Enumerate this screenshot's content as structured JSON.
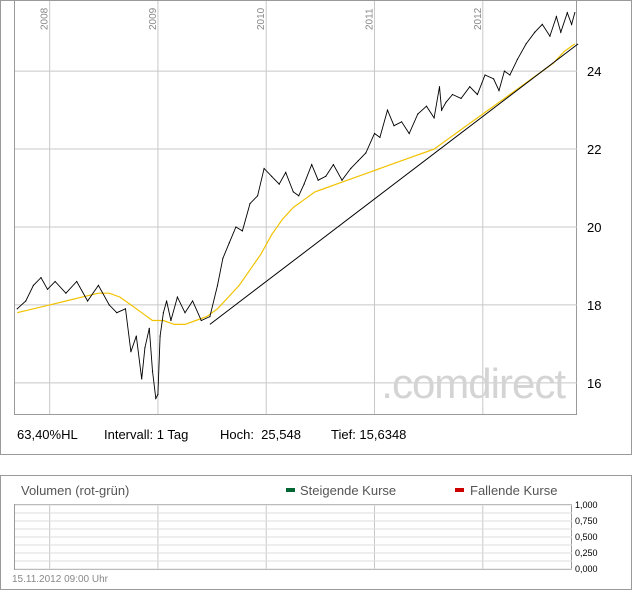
{
  "chart_data": [
    {
      "type": "line",
      "title": "",
      "x_years": [
        "2008",
        "2009",
        "2010",
        "2011",
        "2012"
      ],
      "y_ticks": [
        16,
        18,
        20,
        22,
        24
      ],
      "ylim": [
        15.2,
        25.8
      ],
      "price_series": {
        "name": "",
        "x": [
          2007.7,
          2007.78,
          2007.85,
          2007.92,
          2007.98,
          2008.05,
          2008.15,
          2008.25,
          2008.35,
          2008.45,
          2008.55,
          2008.62,
          2008.7,
          2008.75,
          2008.8,
          2008.85,
          2008.88,
          2008.92,
          2008.95,
          2008.98,
          2009.0,
          2009.02,
          2009.05,
          2009.08,
          2009.12,
          2009.18,
          2009.25,
          2009.32,
          2009.4,
          2009.48,
          2009.55,
          2009.6,
          2009.66,
          2009.72,
          2009.78,
          2009.85,
          2009.92,
          2009.98,
          2010.05,
          2010.12,
          2010.18,
          2010.25,
          2010.3,
          2010.35,
          2010.42,
          2010.48,
          2010.55,
          2010.62,
          2010.7,
          2010.78,
          2010.85,
          2010.92,
          2011.0,
          2011.05,
          2011.12,
          2011.18,
          2011.25,
          2011.32,
          2011.4,
          2011.48,
          2011.55,
          2011.6,
          2011.62,
          2011.66,
          2011.72,
          2011.8,
          2011.88,
          2011.95,
          2012.02,
          2012.1,
          2012.15,
          2012.2,
          2012.25,
          2012.32,
          2012.4,
          2012.48,
          2012.55,
          2012.62,
          2012.68,
          2012.72,
          2012.78,
          2012.82,
          2012.85
        ],
        "y": [
          17.9,
          18.1,
          18.5,
          18.7,
          18.4,
          18.6,
          18.3,
          18.6,
          18.1,
          18.5,
          18.0,
          17.8,
          17.9,
          16.8,
          17.2,
          16.1,
          16.9,
          17.4,
          16.3,
          15.6,
          15.7,
          17.2,
          17.8,
          18.1,
          17.6,
          18.2,
          17.8,
          18.1,
          17.6,
          17.7,
          18.5,
          19.2,
          19.6,
          20.0,
          19.9,
          20.6,
          20.8,
          21.5,
          21.3,
          21.1,
          21.4,
          20.9,
          20.8,
          21.1,
          21.6,
          21.2,
          21.3,
          21.6,
          21.2,
          21.5,
          21.7,
          21.9,
          22.4,
          22.3,
          23.0,
          22.6,
          22.7,
          22.4,
          22.9,
          23.1,
          22.8,
          23.6,
          23.0,
          23.2,
          23.4,
          23.3,
          23.6,
          23.4,
          23.9,
          23.8,
          23.5,
          24.0,
          23.9,
          24.3,
          24.7,
          25.0,
          25.2,
          24.9,
          25.4,
          25.0,
          25.5,
          25.2,
          25.5
        ]
      },
      "moving_average": {
        "name": "",
        "color": "#f2c200",
        "x": [
          2007.7,
          2007.85,
          2008.0,
          2008.15,
          2008.3,
          2008.45,
          2008.55,
          2008.65,
          2008.75,
          2008.85,
          2008.95,
          2009.05,
          2009.15,
          2009.25,
          2009.35,
          2009.45,
          2009.55,
          2009.65,
          2009.75,
          2009.85,
          2009.95,
          2010.05,
          2010.15,
          2010.25,
          2010.35,
          2010.45,
          2010.55,
          2010.65,
          2010.75,
          2010.85,
          2010.95,
          2011.05,
          2011.15,
          2011.25,
          2011.35,
          2011.45,
          2011.55,
          2011.65,
          2011.75,
          2011.85,
          2011.95,
          2012.05,
          2012.15,
          2012.25,
          2012.35,
          2012.45,
          2012.55,
          2012.65,
          2012.75,
          2012.85
        ],
        "y": [
          17.8,
          17.9,
          18.0,
          18.1,
          18.2,
          18.3,
          18.3,
          18.2,
          18.0,
          17.8,
          17.6,
          17.6,
          17.5,
          17.5,
          17.6,
          17.7,
          17.9,
          18.2,
          18.5,
          18.9,
          19.3,
          19.8,
          20.2,
          20.5,
          20.7,
          20.9,
          21.0,
          21.1,
          21.2,
          21.3,
          21.4,
          21.5,
          21.6,
          21.7,
          21.8,
          21.9,
          22.0,
          22.2,
          22.4,
          22.6,
          22.8,
          23.0,
          23.2,
          23.4,
          23.6,
          23.8,
          24.0,
          24.2,
          24.5,
          24.7
        ]
      },
      "trendline": {
        "x": [
          2009.48,
          2012.88
        ],
        "y": [
          17.5,
          24.7
        ]
      },
      "grid": true,
      "y_axis_position": "right"
    },
    {
      "type": "bar",
      "title": "Volumen (rot-grün)",
      "y_ticks": [
        "1,000",
        "0,750",
        "0,500",
        "0,250",
        "0,000"
      ],
      "ylim": [
        0,
        1
      ],
      "grid": true,
      "y_axis_position": "right"
    }
  ],
  "stats": {
    "hl": "63,40%HL",
    "interval": "Intervall: 1 Tag",
    "high": "Hoch:  25,548",
    "low": "Tief: 15,6348"
  },
  "watermark": ".comdirect",
  "volume_panel": {
    "rising": "Steigende Kurse",
    "rising_color": "#006633",
    "falling": "Fallende Kurse",
    "falling_color": "#cc0000"
  },
  "timestamp": "15.11.2012 09:00 Uhr"
}
